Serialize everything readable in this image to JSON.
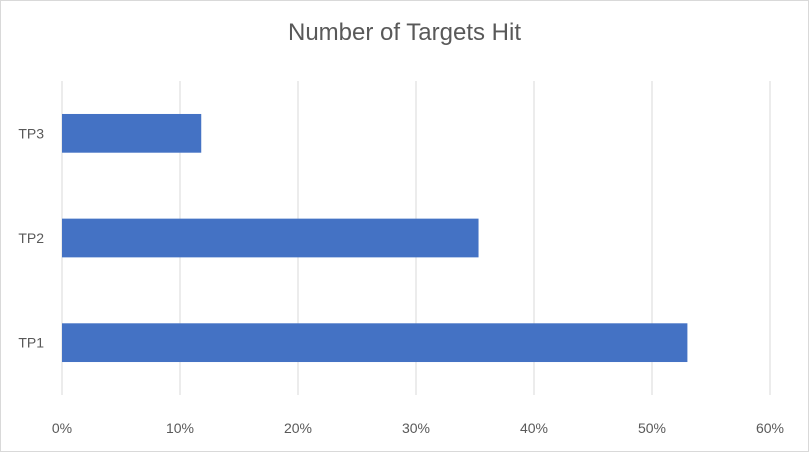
{
  "chart_data": {
    "type": "bar",
    "orientation": "horizontal",
    "title": "Number of Targets Hit",
    "categories": [
      "TP1",
      "TP2",
      "TP3"
    ],
    "values": [
      0.53,
      0.353,
      0.118
    ],
    "xlim": [
      0,
      0.6
    ],
    "x_ticks": [
      0,
      0.1,
      0.2,
      0.3,
      0.4,
      0.5,
      0.6
    ],
    "x_tick_labels": [
      "0%",
      "10%",
      "20%",
      "30%",
      "40%",
      "50%",
      "60%"
    ],
    "grid": "vertical",
    "legend": "none",
    "bar_color": "#4472c4",
    "grid_color": "#d9d9d9"
  }
}
